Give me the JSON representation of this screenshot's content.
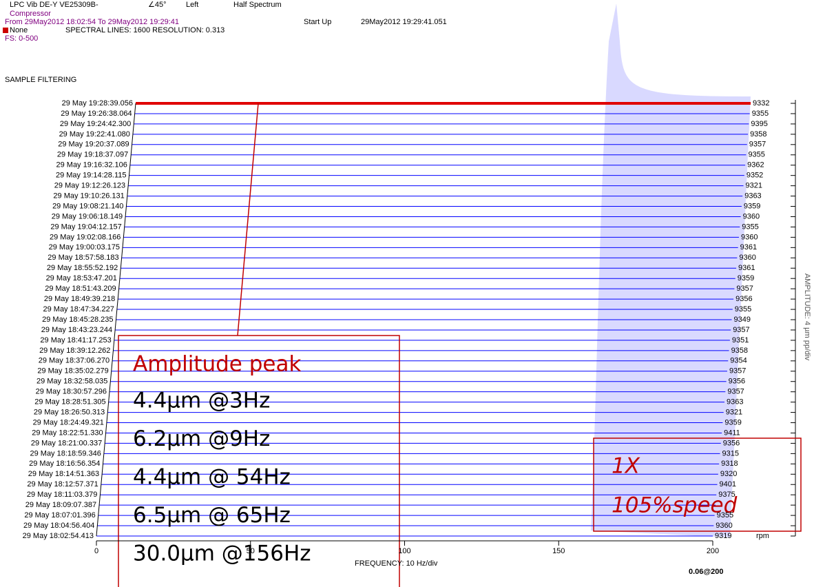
{
  "header": {
    "sensor": "LPC Vib DE-Y VE25309B-",
    "angle": "∠45°",
    "side": "Left",
    "mode": "Half Spectrum",
    "machine": "Compressor",
    "range": "From 29May2012 18:02:54 To 29May2012 19:29:41",
    "event": "Start Up",
    "event_time": "29May2012 19:29:41.051",
    "alarm": "None",
    "lines": "SPECTRAL LINES: 1600 RESOLUTION: 0.313",
    "fs": "FS: 0-500",
    "filtering": "SAMPLE FILTERING"
  },
  "chart_data": {
    "type": "waterfall",
    "color": "#0000ff",
    "categories": [
      "29 May 19:28:39.056",
      "29 May 19:26:38.064",
      "29 May 19:24:42.300",
      "29 May 19:22:41.080",
      "29 May 19:20:37.089",
      "29 May 19:18:37.097",
      "29 May 19:16:32.106",
      "29 May 19:14:28.115",
      "29 May 19:12:26.123",
      "29 May 19:10:26.131",
      "29 May 19:08:21.140",
      "29 May 19:06:18.149",
      "29 May 19:04:12.157",
      "29 May 19:02:08.166",
      "29 May 19:00:03.175",
      "29 May 18:57:58.183",
      "29 May 18:55:52.192",
      "29 May 18:53:47.201",
      "29 May 18:51:43.209",
      "29 May 18:49:39.218",
      "29 May 18:47:34.227",
      "29 May 18:45:28.235",
      "29 May 18:43:23.244",
      "29 May 18:41:17.253",
      "29 May 18:39:12.262",
      "29 May 18:37:06.270",
      "29 May 18:35:02.279",
      "29 May 18:32:58.035",
      "29 May 18:30:57.296",
      "29 May 18:28:51.305",
      "29 May 18:26:50.313",
      "29 May 18:24:49.321",
      "29 May 18:22:51.330",
      "29 May 18:21:00.337",
      "29 May 18:18:59.346",
      "29 May 18:16:56.354",
      "29 May 18:14:51.363",
      "29 May 18:12:57.371",
      "29 May 18:11:03.379",
      "29 May 18:09:07.387",
      "29 May 18:07:01.396",
      "29 May 18:04:56.404",
      "29 May 18:02:54.413"
    ],
    "rpm": [
      "9332",
      "9355",
      "9395",
      "9358",
      "9357",
      "9355",
      "9362",
      "9352",
      "9321",
      "9363",
      "9359",
      "9360",
      "9355",
      "9360",
      "9361",
      "9360",
      "9361",
      "9359",
      "9357",
      "9356",
      "9355",
      "9349",
      "9357",
      "9351",
      "9358",
      "9354",
      "9357",
      "9356",
      "9357",
      "9363",
      "9321",
      "9359",
      "9411",
      "9356",
      "9315",
      "9318",
      "9320",
      "9401",
      "9375",
      null,
      "9355",
      "9360",
      "9319"
    ],
    "rpm_unit": "rpm",
    "xlim": [
      0,
      200
    ],
    "xticks": [
      0,
      50,
      100,
      150,
      200
    ],
    "x_label": "FREQUENCY: 10 Hz/div",
    "y_label": "AMPLITUDE: 4 µm pp/div",
    "scale_note": "0.06@200",
    "annotations": {
      "peaks_title": "Amplitude peak",
      "peaks": [
        "4.4µm @3Hz",
        "6.2µm @9Hz",
        "4.4µm  @ 54Hz",
        "6.5µm  @ 65Hz",
        "30.0µm @156Hz"
      ],
      "run_1": "1X",
      "run_2": "105%speed"
    }
  }
}
